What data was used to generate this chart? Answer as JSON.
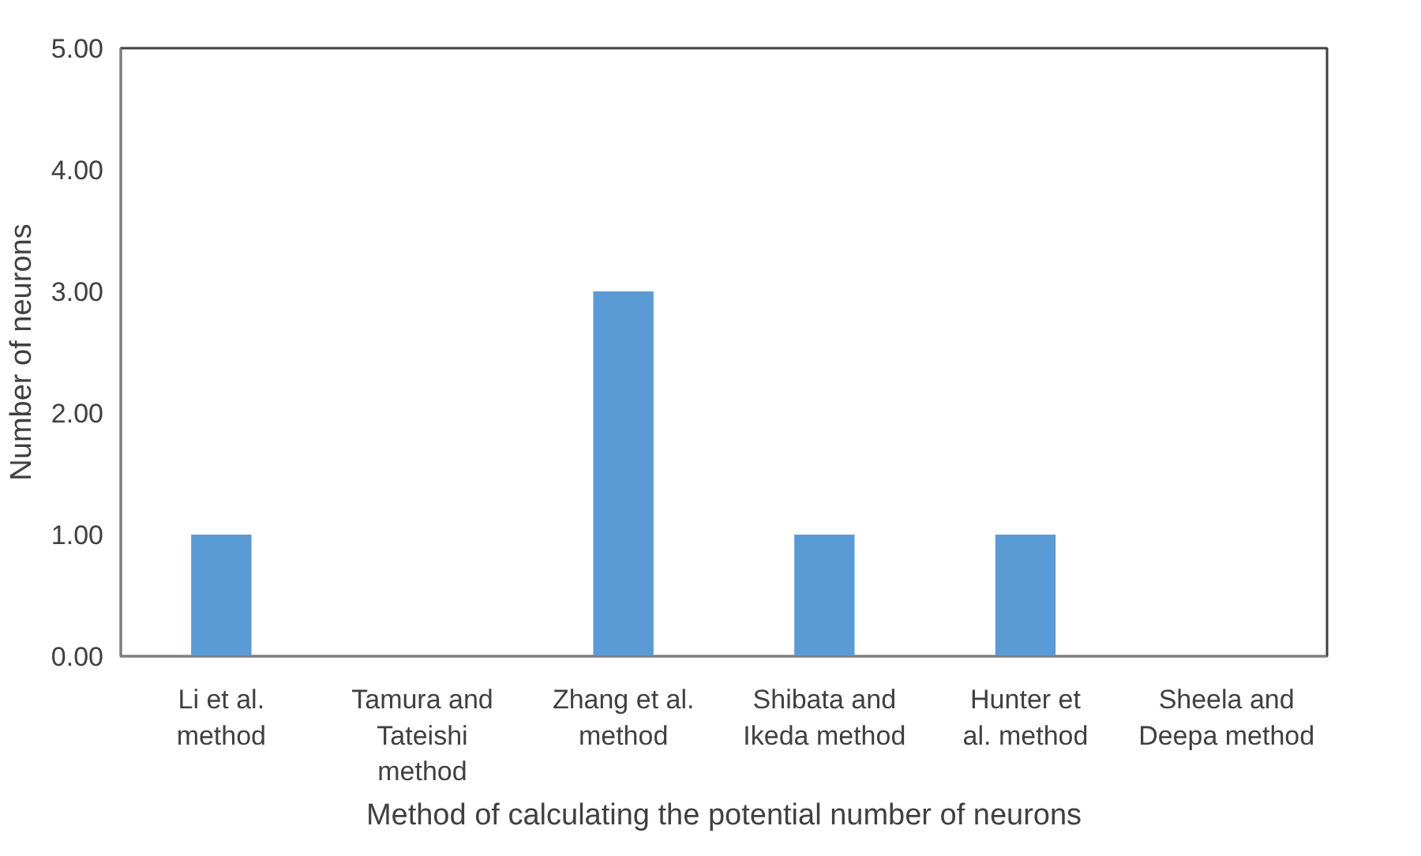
{
  "chart_data": {
    "type": "bar",
    "xlabel": "Method of calculating the potential number of neurons",
    "ylabel": "Number of neurons",
    "categories": [
      "Li et al. method",
      "Tamura and Tateishi method",
      "Zhang et al. method",
      "Shibata and Ikeda method",
      "Hunter et al. method",
      "Sheela and Deepa method"
    ],
    "values": [
      1,
      0,
      3,
      1,
      1,
      0
    ],
    "color": "#5b9bd5",
    "ylim": [
      0,
      5
    ],
    "yticks": [
      {
        "value": 0,
        "label": "0.00"
      },
      {
        "value": 1,
        "label": "1.00"
      },
      {
        "value": 2,
        "label": "2.00"
      },
      {
        "value": 3,
        "label": "3.00"
      },
      {
        "value": 4,
        "label": "4.00"
      },
      {
        "value": 5,
        "label": "5.00"
      }
    ],
    "grid": false
  }
}
